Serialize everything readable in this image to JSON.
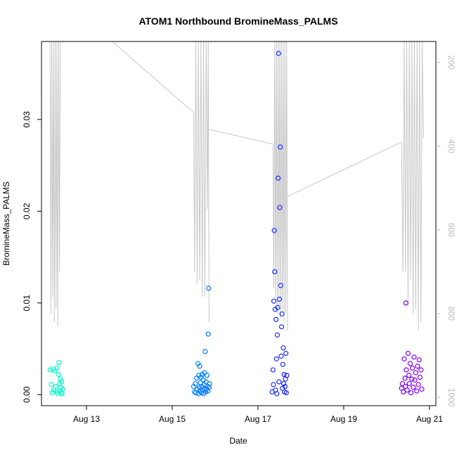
{
  "chart_data": {
    "type": "scatter",
    "title": "ATOM1 Northbound BromineMass_PALMS",
    "xlabel": "Date",
    "ylabel": "BromineMass_PALMS",
    "x_ticks": [
      "Aug 13",
      "Aug 15",
      "Aug 17",
      "Aug 19",
      "Aug 21"
    ],
    "x_tick_values": [
      13,
      15,
      17,
      19,
      21
    ],
    "xlim": [
      11.95,
      21.15
    ],
    "ylim": [
      -0.0012,
      0.0385
    ],
    "y_ticks": [
      "0.00",
      "0.01",
      "0.02",
      "0.03"
    ],
    "y_tick_values": [
      0,
      0.01,
      0.02,
      0.03
    ],
    "y2_ticks": [
      "200",
      "400",
      "600",
      "800",
      "1000"
    ],
    "y2_tick_values": [
      200,
      400,
      600,
      800,
      1000
    ],
    "y2_lim": [
      1020,
      150
    ],
    "grid": false,
    "color_by_time": [
      "#00ffc8",
      "#00c8ff",
      "#0050ff",
      "#3c00ff",
      "#8c00ff"
    ],
    "overlay_color": "#c8c8c8",
    "series": [
      {
        "points": [
          [
            12.15,
            0.0027
          ],
          [
            12.18,
            0.0011
          ],
          [
            12.2,
            0.0002
          ],
          [
            12.22,
            0.0028
          ],
          [
            12.24,
            0.0005
          ],
          [
            12.26,
            0.0026
          ],
          [
            12.28,
            0.0009
          ],
          [
            12.3,
            0.0003
          ],
          [
            12.31,
            0.0029
          ],
          [
            12.33,
            0.0001
          ],
          [
            12.35,
            0.0022
          ],
          [
            12.36,
            0.0035
          ],
          [
            12.37,
            0.0012
          ],
          [
            12.38,
            0.0004
          ],
          [
            12.39,
            0.0017
          ],
          [
            12.4,
            0.0008
          ],
          [
            12.41,
            0.0002
          ],
          [
            12.42,
            0.0014
          ],
          [
            12.43,
            0.0001
          ],
          [
            12.44,
            0.0006
          ]
        ]
      },
      {
        "points": [
          [
            15.5,
            0.0009
          ],
          [
            15.52,
            0.0003
          ],
          [
            15.54,
            0.0012
          ],
          [
            15.55,
            0.0002
          ],
          [
            15.57,
            0.0018
          ],
          [
            15.58,
            0.0006
          ],
          [
            15.6,
            0.0034
          ],
          [
            15.61,
            0.0001
          ],
          [
            15.62,
            0.0021
          ],
          [
            15.63,
            0.0008
          ],
          [
            15.64,
            0.0031
          ],
          [
            15.65,
            0.0004
          ],
          [
            15.66,
            0.0013
          ],
          [
            15.67,
            0.0019
          ],
          [
            15.68,
            0.0002
          ],
          [
            15.69,
            0.0009
          ],
          [
            15.7,
            0.0022
          ],
          [
            15.71,
            0.0005
          ],
          [
            15.72,
            0.0016
          ],
          [
            15.73,
            0.0001
          ],
          [
            15.74,
            0.0011
          ],
          [
            15.75,
            0.0024
          ],
          [
            15.76,
            0.0007
          ],
          [
            15.77,
            0.0047
          ],
          [
            15.78,
            0.0003
          ],
          [
            15.79,
            0.0014
          ],
          [
            15.8,
            0.0006
          ],
          [
            15.81,
            0.0021
          ],
          [
            15.82,
            0.0009
          ],
          [
            15.83,
            0.0004
          ],
          [
            15.84,
            0.0066
          ],
          [
            15.85,
            0.0116
          ],
          [
            15.86,
            0.0008
          ],
          [
            15.87,
            0.0012
          ]
        ]
      },
      {
        "points": [
          [
            17.33,
            0.0003
          ],
          [
            17.35,
            0.0027
          ],
          [
            17.36,
            0.0011
          ],
          [
            17.37,
            0.0102
          ],
          [
            17.38,
            0.0179
          ],
          [
            17.39,
            0.0134
          ],
          [
            17.4,
            0.0093
          ],
          [
            17.41,
            0.0005
          ],
          [
            17.42,
            0.0082
          ],
          [
            17.43,
            0.0039
          ],
          [
            17.44,
            0.0001
          ],
          [
            17.45,
            0.0065
          ],
          [
            17.46,
            0.0095
          ],
          [
            17.47,
            0.0236
          ],
          [
            17.48,
            0.0372
          ],
          [
            17.49,
            0.0014
          ],
          [
            17.5,
            0.0104
          ],
          [
            17.51,
            0.0204
          ],
          [
            17.52,
            0.027
          ],
          [
            17.53,
            0.0119
          ],
          [
            17.54,
            0.0042
          ],
          [
            17.55,
            0.0074
          ],
          [
            17.56,
            0.0088
          ],
          [
            17.57,
            0.0007
          ],
          [
            17.58,
            0.0033
          ],
          [
            17.59,
            0.0051
          ],
          [
            17.6,
            0.0012
          ],
          [
            17.61,
            0.0022
          ],
          [
            17.62,
            0.0003
          ],
          [
            17.63,
            0.0009
          ],
          [
            17.64,
            0.0017
          ],
          [
            17.65,
            0.0045
          ],
          [
            17.66,
            0.0002
          ],
          [
            17.67,
            0.0021
          ]
        ]
      },
      {
        "points": [
          [
            20.35,
            0.0007
          ],
          [
            20.37,
            0.0012
          ],
          [
            20.39,
            0.0003
          ],
          [
            20.41,
            0.0039
          ],
          [
            20.43,
            0.0018
          ],
          [
            20.44,
            0.0009
          ],
          [
            20.45,
            0.01
          ],
          [
            20.46,
            0.0027
          ],
          [
            20.48,
            0.0005
          ],
          [
            20.5,
            0.0045
          ],
          [
            20.52,
            0.0021
          ],
          [
            20.53,
            0.0012
          ],
          [
            20.55,
            0.0034
          ],
          [
            20.57,
            0.0002
          ],
          [
            20.59,
            0.0017
          ],
          [
            20.6,
            0.0029
          ],
          [
            20.62,
            0.0008
          ],
          [
            20.64,
            0.0041
          ],
          [
            20.66,
            0.0016
          ],
          [
            20.68,
            0.0024
          ],
          [
            20.7,
            0.0004
          ],
          [
            20.72,
            0.0031
          ],
          [
            20.74,
            0.0011
          ],
          [
            20.76,
            0.0038
          ],
          [
            20.78,
            0.0019
          ],
          [
            20.8,
            0.0027
          ],
          [
            20.82,
            0.0006
          ]
        ]
      }
    ],
    "pressure_trace": {
      "segments": [
        {
          "x": [
            12.15,
            12.17,
            12.19,
            12.21,
            12.23,
            12.25,
            12.27,
            12.29,
            12.31,
            12.33,
            12.35,
            12.37,
            12.39,
            12.41,
            12.43,
            12.45
          ],
          "y": [
            150,
            800,
            150,
            760,
            150,
            820,
            150,
            790,
            150,
            830,
            150,
            700,
            150,
            150,
            150,
            150
          ]
        },
        {
          "x": [
            12.45,
            13.6,
            15.5
          ],
          "y": [
            150,
            150,
            320
          ]
        },
        {
          "x": [
            15.5,
            15.52,
            15.55,
            15.58,
            15.61,
            15.64,
            15.67,
            15.7,
            15.73,
            15.76,
            15.79,
            15.82,
            15.84,
            15.86
          ],
          "y": [
            320,
            700,
            150,
            730,
            150,
            720,
            150,
            760,
            150,
            760,
            150,
            550,
            150,
            820
          ]
        },
        {
          "x": [
            15.86,
            17.35
          ],
          "y": [
            360,
            395
          ]
        },
        {
          "x": [
            17.35,
            17.37,
            17.39,
            17.41,
            17.43,
            17.45,
            17.47,
            17.49,
            17.51,
            17.53,
            17.55,
            17.57,
            17.59,
            17.61,
            17.63,
            17.65,
            17.67,
            17.69
          ],
          "y": [
            395,
            740,
            150,
            770,
            150,
            800,
            150,
            780,
            150,
            810,
            150,
            790,
            150,
            820,
            150,
            800,
            150,
            840
          ]
        },
        {
          "x": [
            17.69,
            20.35
          ],
          "y": [
            520,
            390
          ]
        },
        {
          "x": [
            20.35,
            20.38,
            20.41,
            20.44,
            20.47,
            20.5,
            20.53,
            20.56,
            20.59,
            20.62,
            20.65,
            20.68,
            20.71,
            20.74,
            20.77,
            20.8,
            20.83,
            20.86
          ],
          "y": [
            390,
            700,
            150,
            700,
            150,
            780,
            150,
            720,
            150,
            800,
            150,
            790,
            150,
            840,
            150,
            820,
            150,
            380
          ]
        }
      ]
    }
  }
}
